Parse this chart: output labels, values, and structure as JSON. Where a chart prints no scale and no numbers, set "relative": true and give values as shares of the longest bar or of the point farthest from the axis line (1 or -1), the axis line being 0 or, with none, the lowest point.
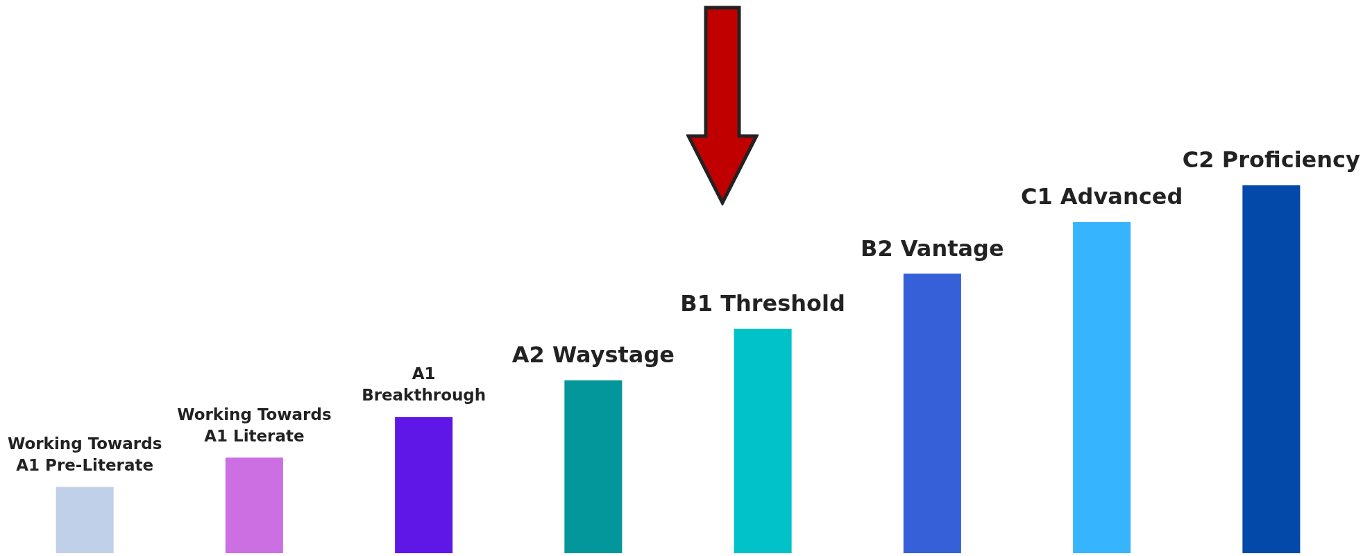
{
  "chart_data": {
    "type": "bar",
    "relative": true,
    "categories": [
      "Working Towards A1 Pre-Literate",
      "Working Towards A1 Literate",
      "A1 Breakthrough",
      "A2 Waystage",
      "B1 Threshold",
      "B2 Vantage",
      "C1 Advanced",
      "C2 Proficiency"
    ],
    "values": [
      0.18,
      0.26,
      0.37,
      0.47,
      0.61,
      0.76,
      0.9,
      1
    ],
    "colors": [
      "#c0d0e8",
      "#cc6fe3",
      "#5f17e8",
      "#03979b",
      "#00c2c8",
      "#3560d8",
      "#36b4fd",
      "#0249a9"
    ]
  }
}
